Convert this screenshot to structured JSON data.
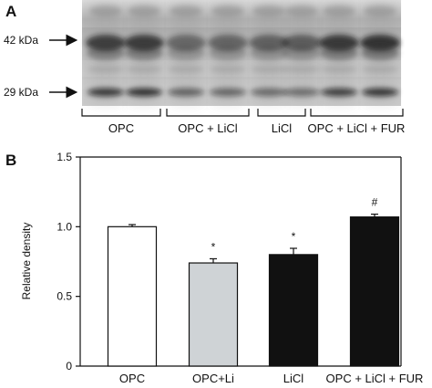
{
  "panel_a": {
    "letter": "A",
    "markers": [
      "42 kDa",
      "29 kDa"
    ],
    "lane_groups": [
      "OPC",
      "OPC + LiCl",
      "LiCl",
      "OPC + LiCl + FUR"
    ]
  },
  "panel_b": {
    "letter": "B"
  },
  "chart_data": {
    "type": "bar",
    "categories": [
      "OPC",
      "OPC+Li",
      "LiCl",
      "OPC + LiCl + FUR"
    ],
    "values": [
      1.0,
      0.74,
      0.8,
      1.07
    ],
    "errors": [
      0.015,
      0.03,
      0.045,
      0.02
    ],
    "annotations": [
      "",
      "*",
      "*",
      "#"
    ],
    "bar_colors": [
      "#ffffff",
      "#cfd3d6",
      "#111111",
      "#111111"
    ],
    "title": "",
    "xlabel": "",
    "ylabel": "Relative density",
    "ylim": [
      0,
      1.5
    ],
    "yticks": [
      "0",
      "0.5",
      "1.0",
      "1.5"
    ],
    "grid": false
  }
}
